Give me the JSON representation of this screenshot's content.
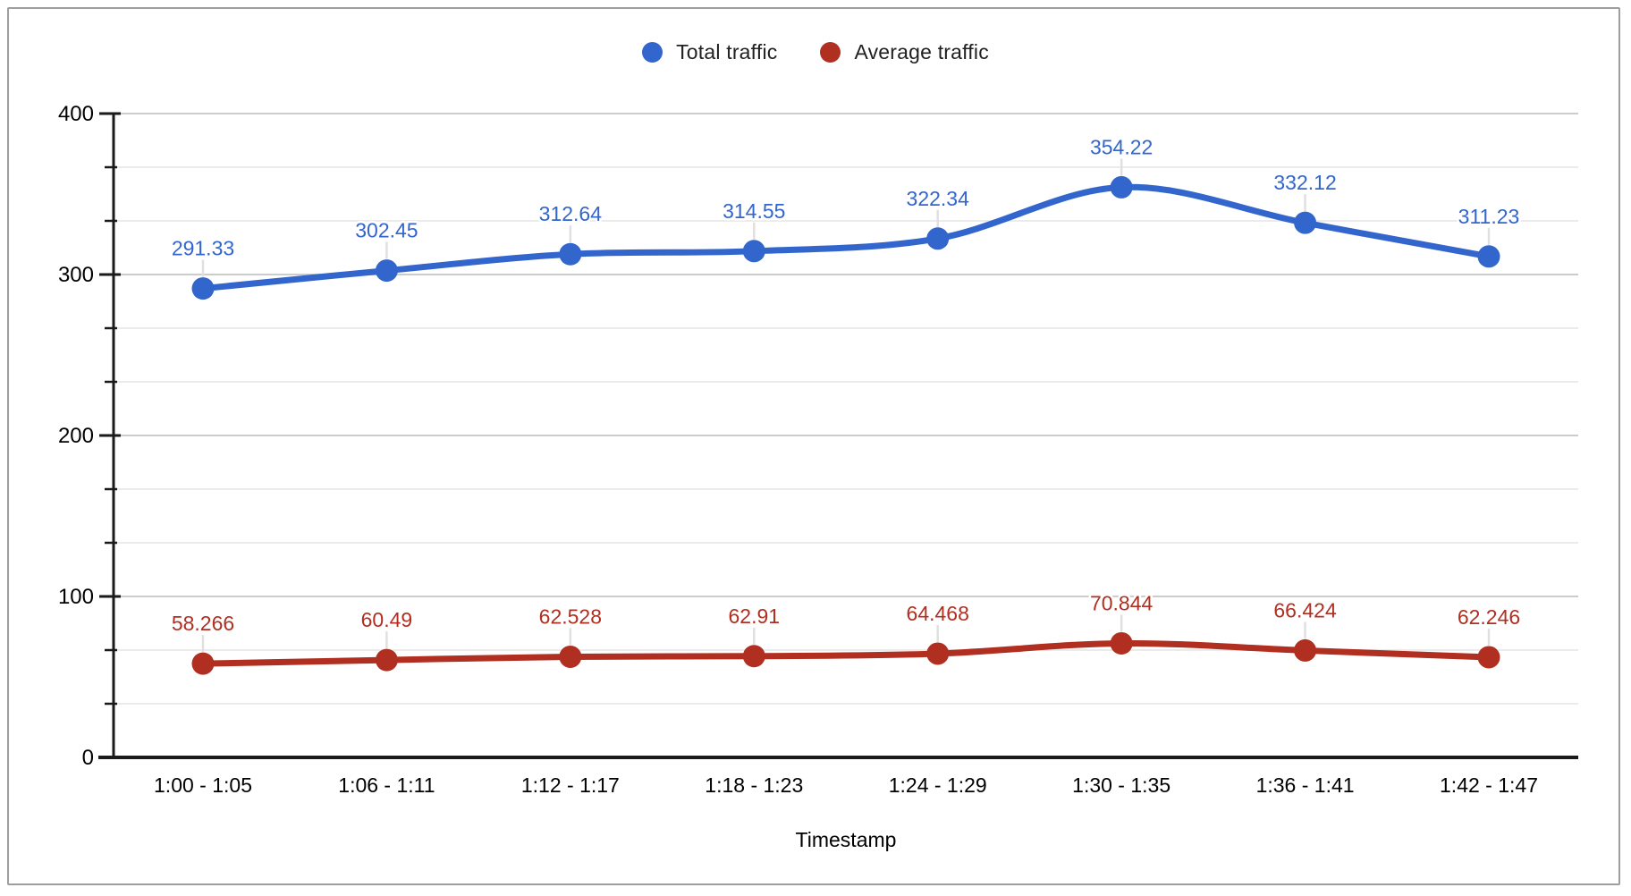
{
  "legend": {
    "items": [
      {
        "label": "Total traffic",
        "color": "#3366CC"
      },
      {
        "label": "Average traffic",
        "color": "#B02F20"
      }
    ]
  },
  "chart_data": {
    "type": "line",
    "smooth": true,
    "title": "",
    "xlabel": "Timestamp",
    "ylabel": "",
    "ylim": [
      0,
      400
    ],
    "yticks_major": [
      0,
      100,
      200,
      300,
      400
    ],
    "yticks_minor_step": 33.3333,
    "grid": true,
    "legend_position": "top",
    "categories": [
      "1:00 - 1:05",
      "1:06 - 1:11",
      "1:12 - 1:17",
      "1:18 - 1:23",
      "1:24 - 1:29",
      "1:30 - 1:35",
      "1:36 - 1:41",
      "1:42 - 1:47"
    ],
    "series": [
      {
        "name": "Total traffic",
        "color": "#3366CC",
        "values": [
          291.33,
          302.45,
          312.64,
          314.55,
          322.34,
          354.22,
          332.12,
          311.23
        ],
        "point_labels": [
          "291.33",
          "302.45",
          "312.64",
          "314.55",
          "322.34",
          "354.22",
          "332.12",
          "311.23"
        ]
      },
      {
        "name": "Average traffic",
        "color": "#B02F20",
        "values": [
          58.266,
          60.49,
          62.528,
          62.91,
          64.468,
          70.844,
          66.424,
          62.246
        ],
        "point_labels": [
          "58.266",
          "60.49",
          "62.528",
          "62.91",
          "64.468",
          "70.844",
          "66.424",
          "62.246"
        ]
      }
    ]
  },
  "style_colors": {
    "axis": "#1a1a1a",
    "grid_major": "#cccccc",
    "grid_minor": "#ebebeb",
    "leader": "#e0e0e0",
    "tick_text": "#000000",
    "frame_border": "#9e9e9e",
    "background": "#ffffff"
  }
}
